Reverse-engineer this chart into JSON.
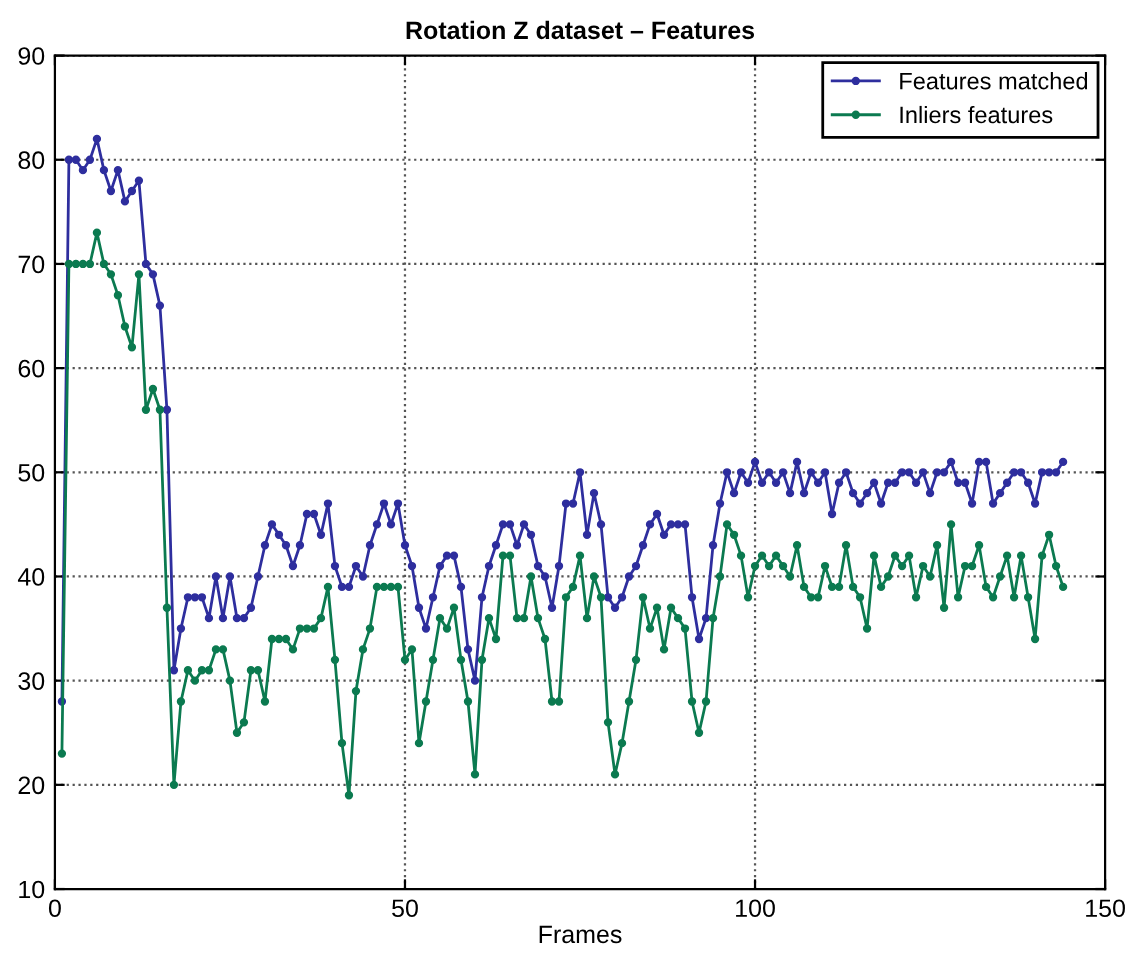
{
  "chart_data": {
    "type": "line",
    "title": "Rotation Z dataset – Features",
    "xlabel": "Frames",
    "x": [
      1,
      2,
      3,
      4,
      5,
      6,
      7,
      8,
      9,
      10,
      11,
      12,
      13,
      14,
      15,
      16,
      17,
      18,
      19,
      20,
      21,
      22,
      23,
      24,
      25,
      26,
      27,
      28,
      29,
      30,
      31,
      32,
      33,
      34,
      35,
      36,
      37,
      38,
      39,
      40,
      41,
      42,
      43,
      44,
      45,
      46,
      47,
      48,
      49,
      50,
      51,
      52,
      53,
      54,
      55,
      56,
      57,
      58,
      59,
      60,
      61,
      62,
      63,
      64,
      65,
      66,
      67,
      68,
      69,
      70,
      71,
      72,
      73,
      74,
      75,
      76,
      77,
      78,
      79,
      80,
      81,
      82,
      83,
      84,
      85,
      86,
      87,
      88,
      89,
      90,
      91,
      92,
      93,
      94,
      95,
      96,
      97,
      98,
      99,
      100,
      101,
      102,
      103,
      104,
      105,
      106,
      107,
      108,
      109,
      110,
      111,
      112,
      113,
      114,
      115,
      116,
      117,
      118,
      119,
      120,
      121,
      122,
      123,
      124,
      125,
      126,
      127,
      128,
      129,
      130,
      131,
      132,
      133,
      134,
      135,
      136,
      137,
      138,
      139,
      140,
      141,
      142,
      143,
      144
    ],
    "series": [
      {
        "name": "Features matched",
        "color": "#2e2e9e",
        "values": [
          28,
          80,
          80,
          79,
          80,
          82,
          79,
          77,
          79,
          76,
          77,
          78,
          70,
          69,
          66,
          56,
          31,
          35,
          38,
          38,
          38,
          36,
          40,
          36,
          40,
          36,
          36,
          37,
          40,
          43,
          45,
          44,
          43,
          41,
          43,
          46,
          46,
          44,
          47,
          41,
          39,
          39,
          41,
          40,
          43,
          45,
          47,
          45,
          47,
          43,
          41,
          37,
          35,
          38,
          41,
          42,
          42,
          39,
          33,
          30,
          38,
          41,
          43,
          45,
          45,
          43,
          45,
          44,
          41,
          40,
          37,
          41,
          47,
          47,
          50,
          44,
          48,
          45,
          38,
          37,
          38,
          40,
          41,
          43,
          45,
          46,
          44,
          45,
          45,
          45,
          38,
          34,
          36,
          43,
          47,
          50,
          48,
          50,
          49,
          51,
          49,
          50,
          49,
          50,
          48,
          51,
          48,
          50,
          49,
          50,
          46,
          49,
          50,
          48,
          47,
          48,
          49,
          47,
          49,
          49,
          50,
          50,
          49,
          50,
          48,
          50,
          50,
          51,
          49,
          49,
          47,
          51,
          51,
          47,
          48,
          49,
          50,
          50,
          49,
          47,
          50,
          50,
          50,
          51
        ]
      },
      {
        "name": "Inliers features",
        "color": "#0b7a50",
        "values": [
          23,
          70,
          70,
          70,
          70,
          73,
          70,
          69,
          67,
          64,
          62,
          69,
          56,
          58,
          56,
          37,
          20,
          28,
          31,
          30,
          31,
          31,
          33,
          33,
          30,
          25,
          26,
          31,
          31,
          28,
          34,
          34,
          34,
          33,
          35,
          35,
          35,
          36,
          39,
          32,
          24,
          19,
          29,
          33,
          35,
          39,
          39,
          39,
          39,
          32,
          33,
          24,
          28,
          32,
          36,
          35,
          37,
          32,
          28,
          21,
          32,
          36,
          34,
          42,
          42,
          36,
          36,
          40,
          36,
          34,
          28,
          28,
          38,
          39,
          42,
          36,
          40,
          38,
          26,
          21,
          24,
          28,
          32,
          38,
          35,
          37,
          33,
          37,
          36,
          35,
          28,
          25,
          28,
          36,
          40,
          45,
          44,
          42,
          38,
          41,
          42,
          41,
          42,
          41,
          40,
          43,
          39,
          38,
          38,
          41,
          39,
          39,
          43,
          39,
          38,
          35,
          42,
          39,
          40,
          42,
          41,
          42,
          38,
          41,
          40,
          43,
          37,
          45,
          38,
          41,
          41,
          43,
          39,
          38,
          40,
          42,
          38,
          42,
          38,
          34,
          42,
          44,
          41,
          39
        ]
      }
    ],
    "xlim": [
      0,
      150
    ],
    "xticks": [
      0,
      50,
      100,
      150
    ],
    "ylim": [
      10,
      90
    ],
    "yticks": [
      10,
      20,
      30,
      40,
      50,
      60,
      70,
      80,
      90
    ],
    "grid": true,
    "legend": "top right",
    "marker": "circle",
    "line_style": "solid"
  }
}
